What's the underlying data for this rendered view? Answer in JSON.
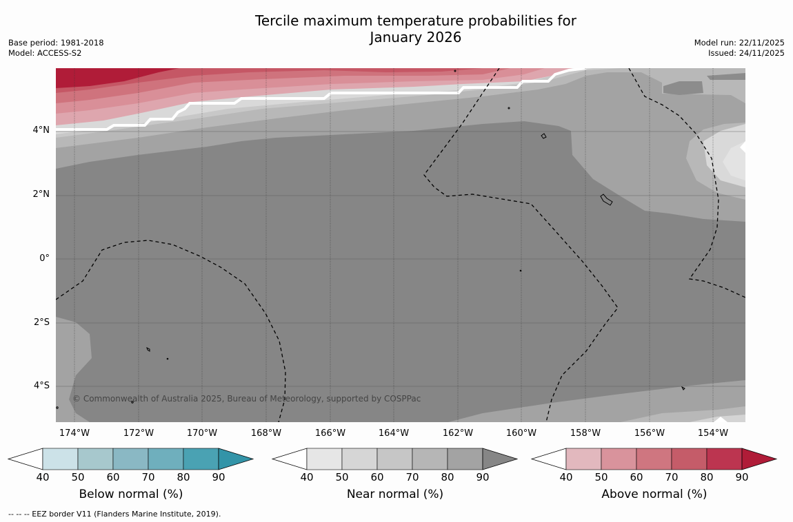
{
  "title": {
    "line1": "Tercile maximum temperature probabilities for",
    "line2": "January 2026"
  },
  "meta": {
    "base_period": "Base period: 1981-2018",
    "model": "Model: ACCESS-S2",
    "model_run": "Model run: 22/11/2025",
    "issued": "Issued: 24/11/2025"
  },
  "map": {
    "lat_labels": [
      "4°N",
      "2°N",
      "0°",
      "2°S",
      "4°S"
    ],
    "lon_labels": [
      "174°W",
      "172°W",
      "170°W",
      "168°W",
      "166°W",
      "164°W",
      "162°W",
      "160°W",
      "158°W",
      "156°W",
      "154°W"
    ],
    "copyright": "© Commonwealth of Australia 2025, Bureau of Meteorology, supported by COSPPac",
    "colors": {
      "near_90": "#868686",
      "near_80": "#a3a3a3",
      "near_70": "#b8b8b8",
      "near_60": "#c8c8c8",
      "near_50": "#d9d9d9",
      "above_50": "#dea6ae",
      "above_60": "#d98f98",
      "above_70": "#cf737d",
      "above_80": "#c55765",
      "above_90": "#b01c38"
    }
  },
  "colorbars": [
    {
      "label": "Below normal (%)",
      "ticks": [
        "40",
        "50",
        "60",
        "70",
        "80",
        "90"
      ],
      "colors": [
        "#cce2e8",
        "#a7c8cd",
        "#8ab8c4",
        "#6fafbd",
        "#4aa2b3",
        "#3394a8"
      ]
    },
    {
      "label": "Near normal (%)",
      "ticks": [
        "40",
        "50",
        "60",
        "70",
        "80",
        "90"
      ],
      "colors": [
        "#e6e6e6",
        "#d6d6d6",
        "#c6c6c6",
        "#b6b6b6",
        "#a3a3a3",
        "#868686"
      ]
    },
    {
      "label": "Above normal (%)",
      "ticks": [
        "40",
        "50",
        "60",
        "70",
        "80",
        "90"
      ],
      "colors": [
        "#e2b8be",
        "#d9939c",
        "#cf7680",
        "#c55c69",
        "#bc3550",
        "#b01c38"
      ]
    }
  ],
  "footnote": "-- -- -- EEZ border V11 (Flanders Marine Institute, 2019)."
}
